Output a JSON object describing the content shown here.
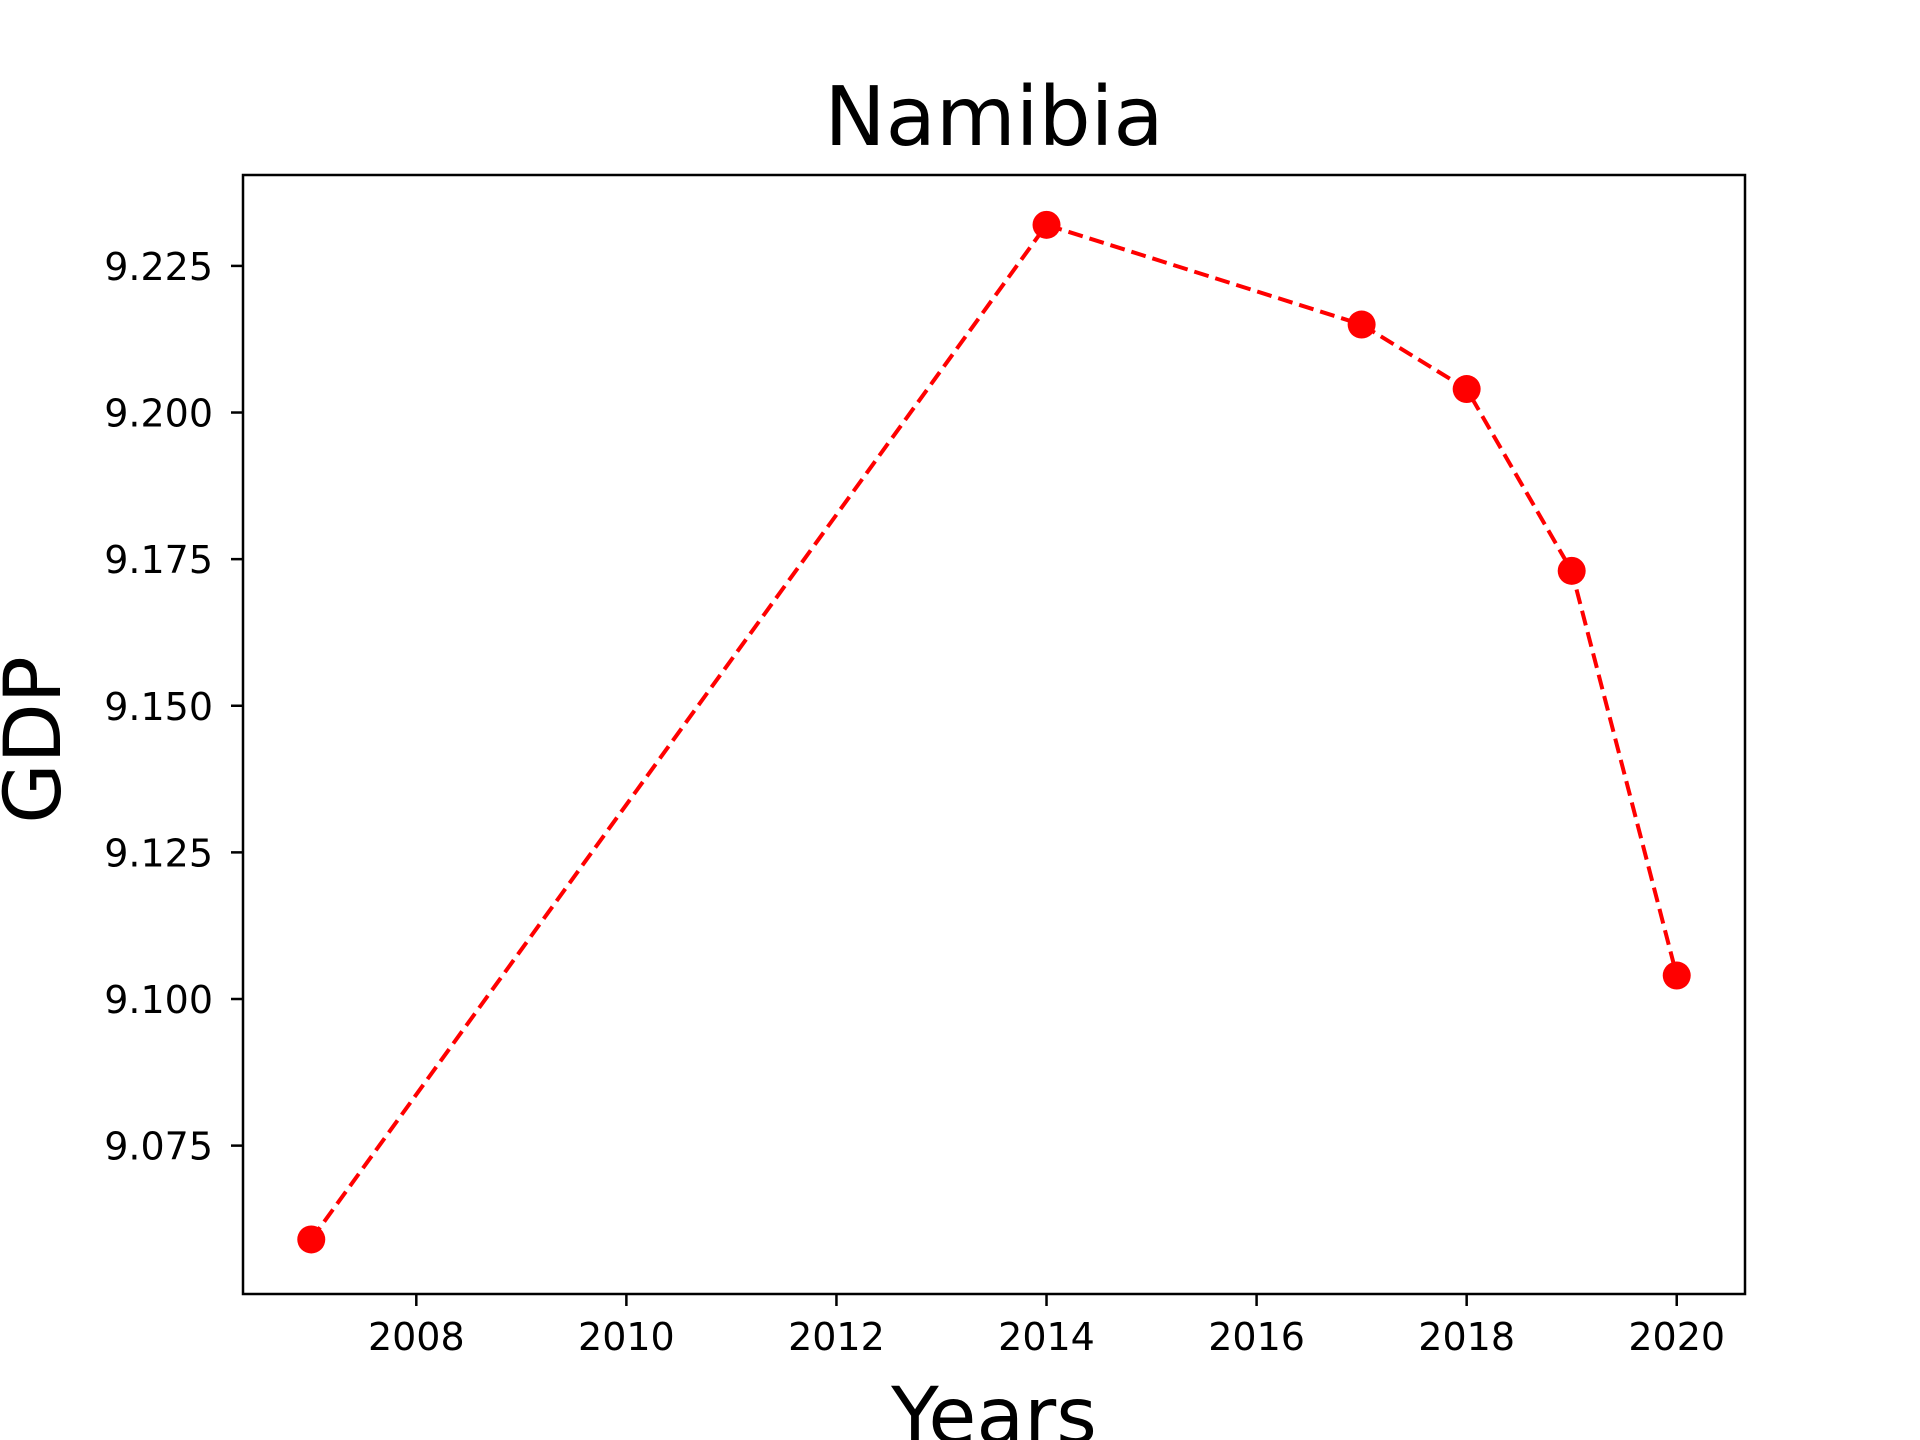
{
  "chart_data": {
    "type": "line",
    "title": "Namibia",
    "xlabel": "Years",
    "ylabel": "GDP",
    "x": [
      2007,
      2014,
      2017,
      2018,
      2019,
      2020
    ],
    "series": [
      {
        "values": [
          9.059,
          9.232,
          9.215,
          9.204,
          9.173,
          9.104
        ],
        "color": "#ff0000",
        "line_style": "dashed",
        "marker": "circle"
      }
    ],
    "xlim": [
      2006.35,
      2020.65
    ],
    "ylim": [
      9.0497,
      9.2405
    ],
    "x_ticks": [
      2008,
      2010,
      2012,
      2014,
      2016,
      2018,
      2020
    ],
    "y_ticks": [
      9.075,
      9.1,
      9.125,
      9.15,
      9.175,
      9.2,
      9.225
    ],
    "y_tick_labels": [
      "9.075",
      "9.100",
      "9.125",
      "9.150",
      "9.175",
      "9.200",
      "9.225"
    ],
    "grid": false,
    "legend": "none"
  }
}
